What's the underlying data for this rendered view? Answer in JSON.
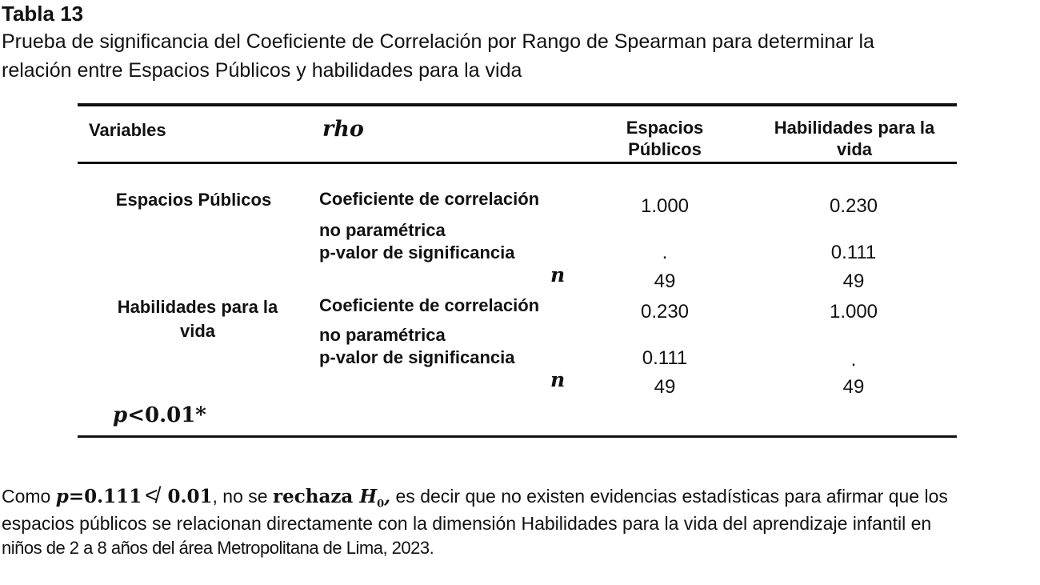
{
  "title": "Tabla 13",
  "caption_line1": "Prueba de significancia del Coeficiente de Correlación por Rango de Spearman para determinar la",
  "caption_line2": "relación entre Espacios Públicos y habilidades para la vida",
  "table": {
    "headers": {
      "variables": "Variables",
      "rho": "rho",
      "col1_line1": "Espacios",
      "col1_line2": "Públicos",
      "col2_line1": "Habilidades para la",
      "col2_line2": "vida"
    },
    "rows": [
      {
        "variable_line1": "Espacios Públicos",
        "variable_line2": "",
        "stat_line1": "Coeficiente de correlación",
        "stat_line2": "no paramétrica",
        "pvalue_label": "p-valor de significancia",
        "n_label": "n",
        "coef": [
          "1.000",
          "0.230"
        ],
        "pvalue": [
          ".",
          "0.111"
        ],
        "n": [
          "49",
          "49"
        ]
      },
      {
        "variable_line1": "Habilidades para la",
        "variable_line2": "vida",
        "stat_line1": "Coeficiente de correlación",
        "stat_line2": "no paramétrica",
        "pvalue_label": "p-valor de significancia",
        "n_label": "n",
        "coef": [
          "0.230",
          "1.000"
        ],
        "pvalue": [
          "0.111",
          "."
        ],
        "n": [
          "49",
          "49"
        ]
      }
    ],
    "footnote_p": "p",
    "footnote_rest": "<0.01*"
  },
  "paragraph": {
    "line1_a": "Como ",
    "line1_p": "p",
    "line1_eq": "=0.111",
    "line1_sym": "≮",
    "line1_val": " 0.01",
    "line1_b": ", no se ",
    "line1_rechaza": "rechaza ",
    "line1_H": "H",
    "line1_sub": "0",
    "line1_comma": ",",
    "line1_c": " es decir que no existen evidencias estadísticas para afirmar que los",
    "line2": "espacios públicos se relacionan directamente con la dimensión Habilidades para la vida del aprendizaje infantil en",
    "line3": "niños de 2 a 8 años del área Metropolitana de Lima, 2023."
  }
}
